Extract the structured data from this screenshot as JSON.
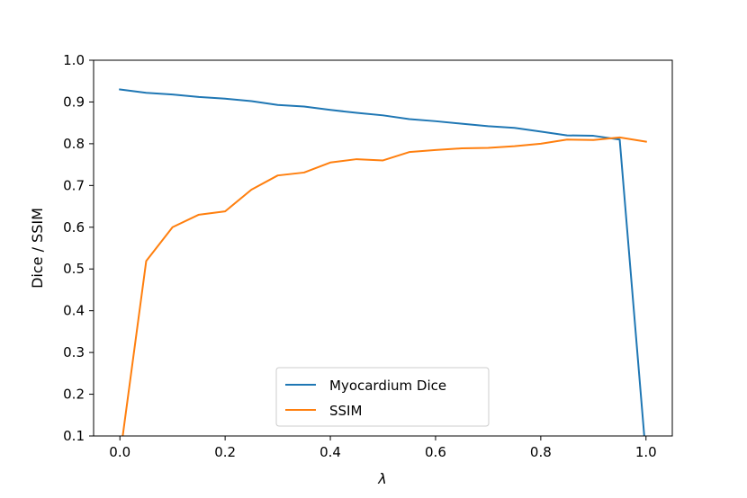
{
  "chart_data": {
    "type": "line",
    "xlabel": "λ",
    "ylabel": "Dice / SSIM",
    "xlim": [
      -0.05,
      1.05
    ],
    "ylim": [
      0.1,
      1.0
    ],
    "xticks": [
      "0.0",
      "0.2",
      "0.4",
      "0.6",
      "0.8",
      "1.0"
    ],
    "yticks": [
      "0.1",
      "0.2",
      "0.3",
      "0.4",
      "0.5",
      "0.6",
      "0.7",
      "0.8",
      "0.9",
      "1.0"
    ],
    "grid": false,
    "legend_position": "bottom-center",
    "x": [
      0.0,
      0.05,
      0.1,
      0.15,
      0.2,
      0.25,
      0.3,
      0.35,
      0.4,
      0.45,
      0.5,
      0.55,
      0.6,
      0.65,
      0.7,
      0.75,
      0.8,
      0.85,
      0.9,
      0.95,
      1.0
    ],
    "series": [
      {
        "name": "Myocardium Dice",
        "color": "#1f77b4",
        "values": [
          0.93,
          0.922,
          0.918,
          0.912,
          0.908,
          0.902,
          0.893,
          0.889,
          0.881,
          0.874,
          0.868,
          0.859,
          0.854,
          0.848,
          0.842,
          0.838,
          0.829,
          0.82,
          0.819,
          0.81,
          0.05
        ]
      },
      {
        "name": "SSIM",
        "color": "#ff7f0e",
        "values": [
          0.05,
          0.519,
          0.6,
          0.63,
          0.638,
          0.69,
          0.724,
          0.731,
          0.755,
          0.763,
          0.76,
          0.78,
          0.785,
          0.789,
          0.79,
          0.794,
          0.8,
          0.81,
          0.809,
          0.815,
          0.805
        ]
      }
    ]
  }
}
